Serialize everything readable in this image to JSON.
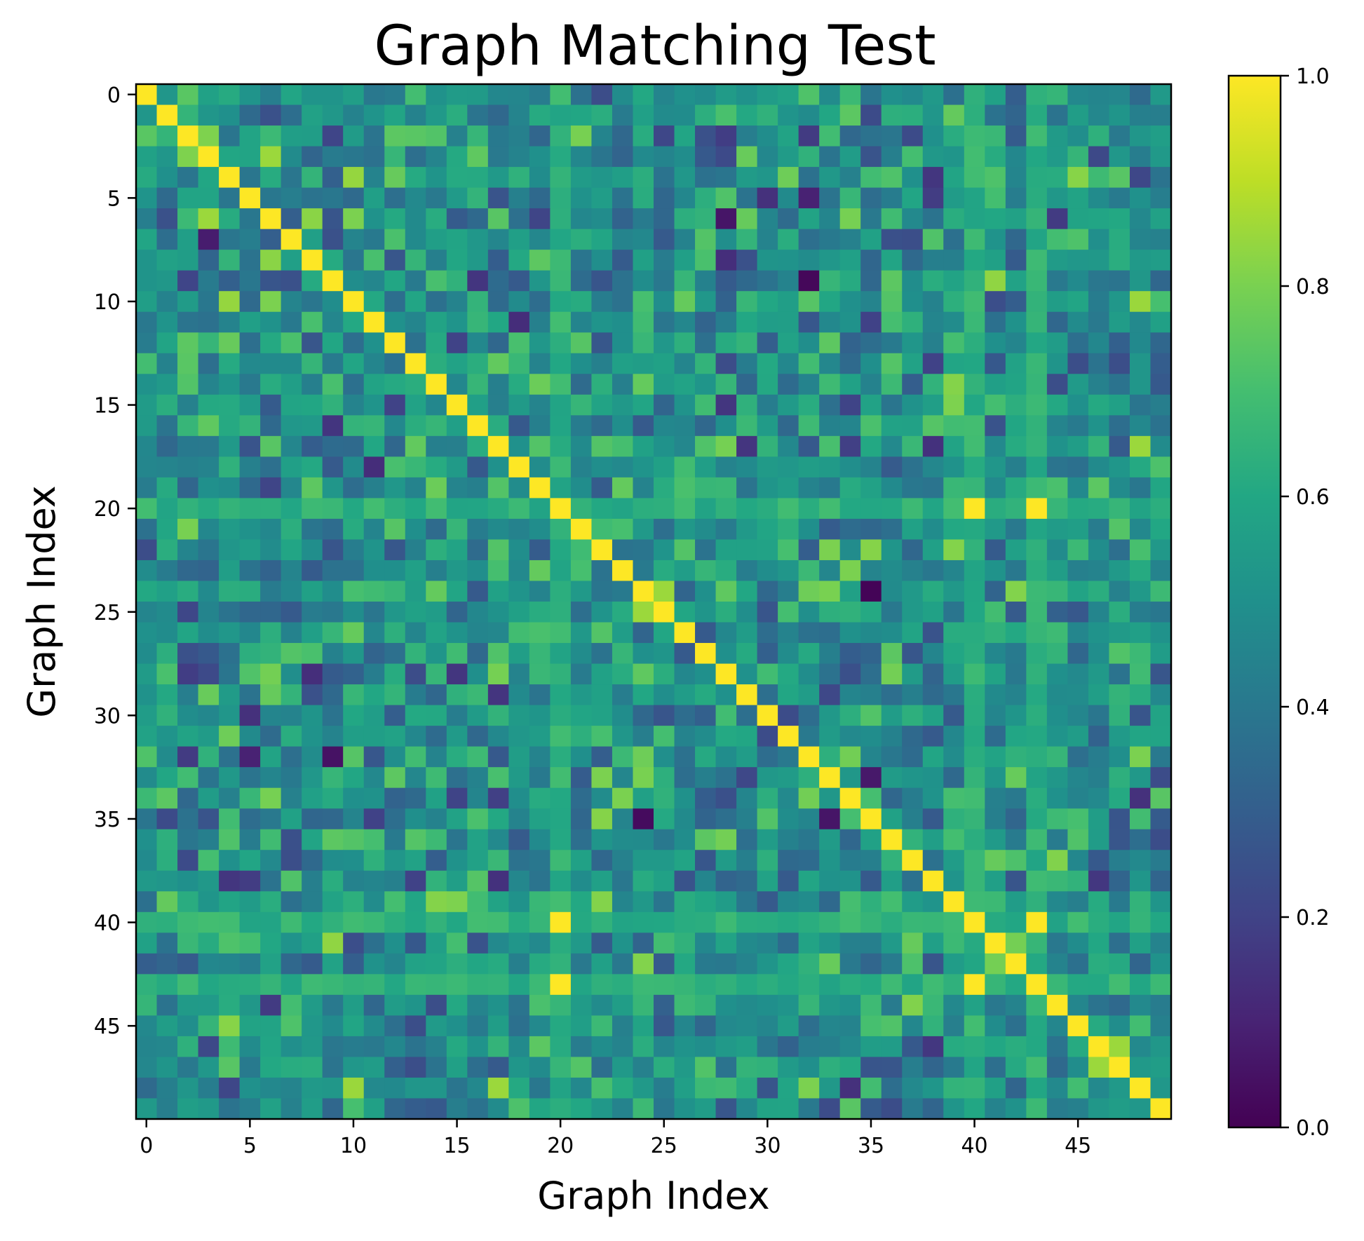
{
  "chart_data": {
    "type": "heatmap",
    "title": "Graph Matching Test",
    "xlabel": "Graph Index",
    "ylabel": "Graph Index",
    "size": 50,
    "x_ticks": [
      0,
      5,
      10,
      15,
      20,
      25,
      30,
      35,
      40,
      45
    ],
    "y_ticks": [
      0,
      5,
      10,
      15,
      20,
      25,
      30,
      35,
      40,
      45
    ],
    "colormap": "viridis",
    "value_range": [
      0.0,
      1.0
    ],
    "colorbar_ticks": [
      "0.0",
      "0.2",
      "0.4",
      "0.6",
      "0.8",
      "1.0"
    ],
    "diagonal_value": 1.0,
    "approx_offdiagonal_mean": 0.5,
    "notable_high_cells": [
      {
        "row": 20,
        "col": 40,
        "value": 1.0
      },
      {
        "row": 20,
        "col": 43,
        "value": 1.0
      },
      {
        "row": 40,
        "col": 20,
        "value": 1.0
      },
      {
        "row": 40,
        "col": 43,
        "value": 1.0
      },
      {
        "row": 43,
        "col": 20,
        "value": 1.0
      },
      {
        "row": 43,
        "col": 40,
        "value": 1.0
      }
    ],
    "high_rows": [
      20,
      40,
      43
    ],
    "high_rows_typical_value": 0.64,
    "notable_low_cells": [
      {
        "row": 9,
        "col": 32,
        "value": 0.02
      },
      {
        "row": 24,
        "col": 35,
        "value": 0.01
      },
      {
        "row": 35,
        "col": 24,
        "value": 0.03
      },
      {
        "row": 32,
        "col": 9,
        "value": 0.05
      },
      {
        "row": 6,
        "col": 28,
        "value": 0.06
      },
      {
        "row": 7,
        "col": 3,
        "value": 0.08
      },
      {
        "row": 33,
        "col": 35,
        "value": 0.07
      },
      {
        "row": 35,
        "col": 33,
        "value": 0.06
      }
    ]
  }
}
